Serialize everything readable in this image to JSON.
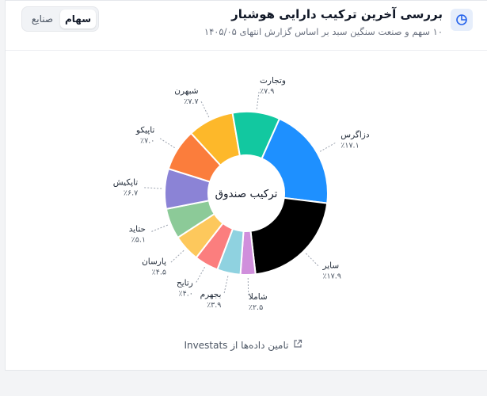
{
  "header": {
    "title": "بررسی آخرین ترکیب دارایی هوشیار",
    "subtitle": "۱۰ سهم و صنعت سنگین سبد بر اساس گزارش انتهای ۱۴۰۵/۰۵",
    "icon": "pie-chart-icon",
    "tabs": [
      {
        "label": "سهام",
        "active": true
      },
      {
        "label": "صنایع",
        "active": false
      }
    ]
  },
  "chart_data": {
    "type": "pie",
    "center_label": "ترکیب صندوق",
    "slices": [
      {
        "label": "دزاگرس",
        "value_label": "٪۱۷.۱",
        "value": 17.1,
        "color": "#1e90ff"
      },
      {
        "label": "سایر",
        "value_label": "٪۱۷.۹",
        "value": 17.9,
        "color": "#000000"
      },
      {
        "label": "شاملا",
        "value_label": "٪۲.۵",
        "value": 2.5,
        "color": "#d08fdc"
      },
      {
        "label": "بجهرم",
        "value_label": "٪۳.۹",
        "value": 3.9,
        "color": "#8fd2e0"
      },
      {
        "label": "رتایح",
        "value_label": "٪۴.۰",
        "value": 4.0,
        "color": "#fb7e7e"
      },
      {
        "label": "پارسان",
        "value_label": "٪۴.۵",
        "value": 4.5,
        "color": "#fdc85c"
      },
      {
        "label": "حتاید",
        "value_label": "٪۵.۱",
        "value": 5.1,
        "color": "#8cca98"
      },
      {
        "label": "تاپکیش",
        "value_label": "٪۶.۷",
        "value": 6.7,
        "color": "#8b83d6"
      },
      {
        "label": "تاپیکو",
        "value_label": "٪۷.۰",
        "value": 7.0,
        "color": "#fb7d3c"
      },
      {
        "label": "شبهرن",
        "value_label": "٪۷.۷",
        "value": 7.7,
        "color": "#fdb82a"
      },
      {
        "label": "وتجارت",
        "value_label": "٪۷.۹",
        "value": 7.9,
        "color": "#12c8a0"
      }
    ]
  },
  "footer": {
    "text": "تامین داده‌ها از Investats",
    "icon": "external-link-icon"
  }
}
